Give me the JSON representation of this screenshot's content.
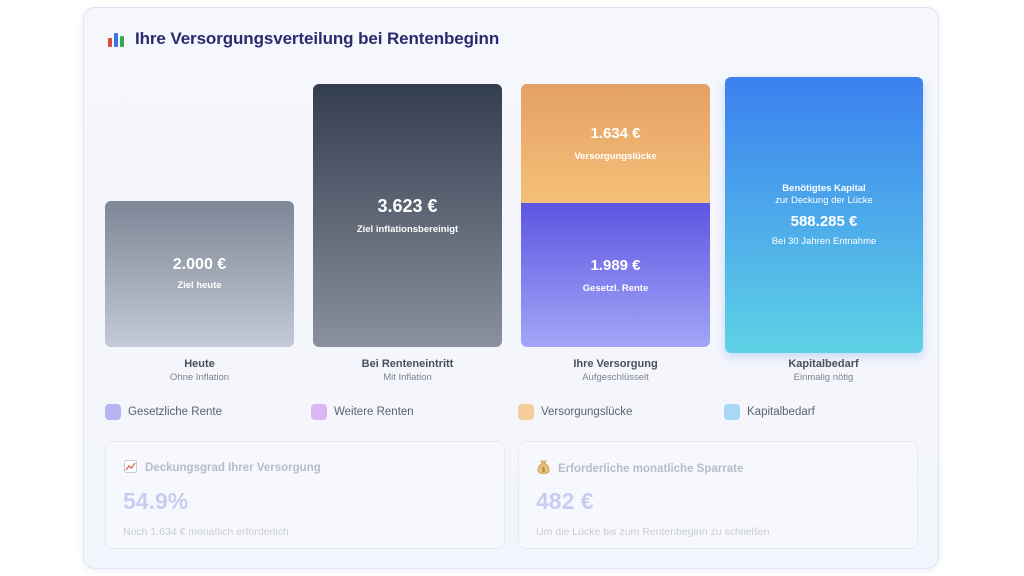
{
  "header": {
    "title": "Ihre Versorgungsverteilung bei Rentenbeginn",
    "icon": "bar-chart-icon"
  },
  "columns": [
    {
      "value": "2.000 €",
      "caption": "Ziel heute",
      "label": "Heute",
      "sublabel": "Ohne Inflation"
    },
    {
      "value": "3.623 €",
      "caption": "Ziel inflationsbereinigt",
      "label": "Bei Renteneintritt",
      "sublabel": "Mit Inflation"
    },
    {
      "gap_value": "1.634 €",
      "gap_caption": "Versorgungslücke",
      "pension_value": "1.989 €",
      "pension_caption": "Gesetzl. Rente",
      "label": "Ihre Versorgung",
      "sublabel": "Aufgeschlüsselt"
    },
    {
      "heading1": "Benötigtes Kapital",
      "heading2": "zur Deckung der Lücke",
      "value": "588.285 €",
      "note": "Bei 30 Jahren Entnahme",
      "label": "Kapitalbedarf",
      "sublabel": "Einmalig nötig"
    }
  ],
  "legend": [
    {
      "label": "Gesetzliche Rente",
      "color": "#b7b4f3"
    },
    {
      "label": "Weitere Renten",
      "color": "#dcb6f5"
    },
    {
      "label": "Versorgungslücke",
      "color": "#f5cc9c"
    },
    {
      "label": "Kapitalbedarf",
      "color": "#a9d7f5"
    }
  ],
  "stats": [
    {
      "icon": "chart-up-icon",
      "title": "Deckungsgrad Ihrer Versorgung",
      "value": "54.9%",
      "footnote": "Noch 1.634 € monatlich erforderlich"
    },
    {
      "icon": "money-bag-icon",
      "title": "Erforderliche monatliche Sparrate",
      "value": "482 €",
      "footnote": "Um die Lücke bis zum Rentenbeginn zu schließen"
    }
  ]
}
